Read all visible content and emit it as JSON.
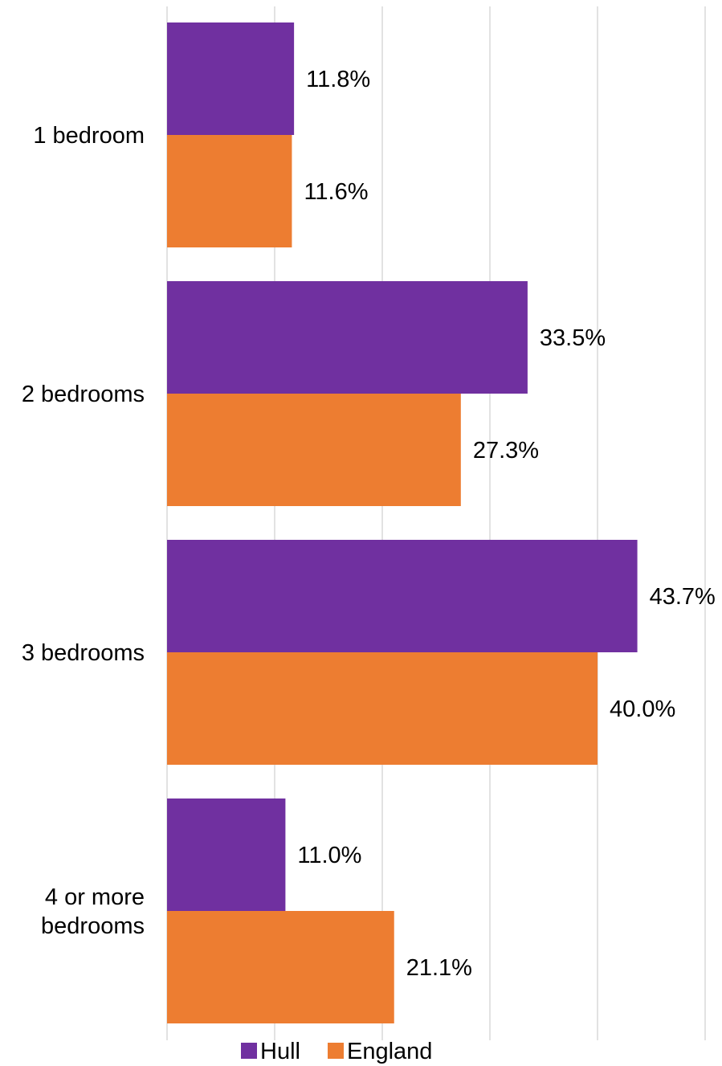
{
  "chart_data": {
    "type": "bar",
    "orientation": "horizontal",
    "categories": [
      [
        "1 bedroom"
      ],
      [
        "2 bedrooms"
      ],
      [
        "3 bedrooms"
      ],
      [
        "4 or more",
        "bedrooms"
      ]
    ],
    "series": [
      {
        "name": "Hull",
        "color": "#7030A0",
        "values": [
          11.8,
          33.5,
          43.7,
          11.0
        ],
        "labels": [
          "11.8%",
          "33.5%",
          "43.7%",
          "11.0%"
        ]
      },
      {
        "name": "England",
        "color": "#ED7D31",
        "values": [
          11.6,
          27.3,
          40.0,
          21.1
        ],
        "labels": [
          "11.6%",
          "27.3%",
          "40.0%",
          "21.1%"
        ]
      }
    ],
    "xlim": [
      0,
      50
    ],
    "grid": true,
    "gridline_color": "#D9D9D9",
    "legend_position": "bottom"
  }
}
